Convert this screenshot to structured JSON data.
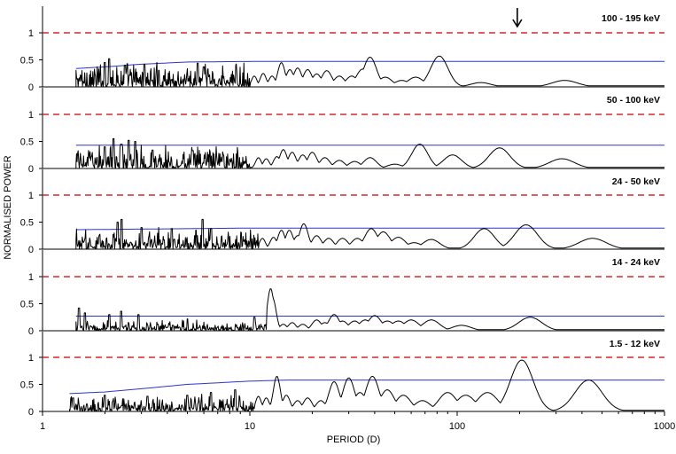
{
  "chart_data": {
    "type": "line",
    "xlabel": "PERIOD (D)",
    "ylabel": "NORMALISED POWER",
    "xscale": "log",
    "xlim": [
      1,
      1000
    ],
    "x_ticks": [
      "1",
      "10",
      "100",
      "1000"
    ],
    "y_ticks": [
      "0",
      "0.5",
      "1"
    ],
    "panel_ylim": [
      0,
      1.2
    ],
    "arrow_marker": {
      "panel": 0,
      "x": 195
    },
    "panels": [
      {
        "label": "100 - 195 keV",
        "colors": {
          "power": "#000000",
          "threshold_low": "#2b35c8",
          "threshold_high": "#d42a2a"
        },
        "threshold_high": 1.0,
        "threshold_low": [
          [
            1.45,
            0.34
          ],
          [
            2,
            0.37
          ],
          [
            3,
            0.42
          ],
          [
            5,
            0.46
          ],
          [
            10,
            0.47
          ],
          [
            1000,
            0.47
          ]
        ],
        "power": {
          "noise_range": [
            1.45,
            10
          ],
          "noise_max": 0.5,
          "spikes": [
            [
              2.0,
              0.45
            ],
            [
              2.1,
              0.52
            ],
            [
              2.5,
              0.4
            ],
            [
              3.1,
              0.42
            ],
            [
              5.6,
              0.44
            ],
            [
              6.0,
              0.37
            ]
          ],
          "peaks": [
            [
              10.5,
              0.2
            ],
            [
              11.6,
              0.25
            ],
            [
              12.8,
              0.2
            ],
            [
              14.2,
              0.45
            ],
            [
              15.6,
              0.32
            ],
            [
              17.0,
              0.35
            ],
            [
              19.0,
              0.32
            ],
            [
              21.0,
              0.24
            ],
            [
              23.5,
              0.3
            ],
            [
              27.0,
              0.2
            ],
            [
              31.0,
              0.2
            ],
            [
              35.0,
              0.33
            ],
            [
              38.0,
              0.55
            ],
            [
              45.0,
              0.18
            ],
            [
              54.0,
              0.12
            ],
            [
              63.0,
              0.18
            ],
            [
              82.0,
              0.57
            ],
            [
              130.0,
              0.08
            ],
            [
              330.0,
              0.12
            ]
          ],
          "floor": 0.02
        }
      },
      {
        "label": "50 - 100 keV",
        "colors": {
          "power": "#000000",
          "threshold_low": "#2b35c8",
          "threshold_high": "#d42a2a"
        },
        "threshold_high": 1.0,
        "threshold_low": [
          [
            1.45,
            0.43
          ],
          [
            1000,
            0.43
          ]
        ],
        "power": {
          "noise_range": [
            1.45,
            10
          ],
          "noise_max": 0.46,
          "spikes": [
            [
              2.0,
              0.4
            ],
            [
              2.2,
              0.55
            ],
            [
              2.4,
              0.45
            ],
            [
              2.6,
              0.52
            ],
            [
              2.8,
              0.5
            ],
            [
              3.4,
              0.34
            ],
            [
              5.3,
              0.33
            ]
          ],
          "peaks": [
            [
              11.0,
              0.2
            ],
            [
              12.0,
              0.18
            ],
            [
              13.5,
              0.22
            ],
            [
              14.5,
              0.35
            ],
            [
              16.0,
              0.3
            ],
            [
              18.0,
              0.25
            ],
            [
              20.0,
              0.3
            ],
            [
              23.0,
              0.2
            ],
            [
              27.0,
              0.15
            ],
            [
              32.0,
              0.13
            ],
            [
              38.0,
              0.2
            ],
            [
              50.0,
              0.08
            ],
            [
              66.0,
              0.45
            ],
            [
              95.0,
              0.25
            ],
            [
              160.0,
              0.38
            ],
            [
              320.0,
              0.18
            ]
          ],
          "floor": 0.02
        }
      },
      {
        "label": "24 - 50 keV",
        "colors": {
          "power": "#000000",
          "threshold_low": "#2b35c8",
          "threshold_high": "#d42a2a"
        },
        "threshold_high": 1.0,
        "threshold_low": [
          [
            1.45,
            0.36
          ],
          [
            10,
            0.39
          ],
          [
            1000,
            0.39
          ]
        ],
        "power": {
          "noise_range": [
            1.45,
            11
          ],
          "noise_max": 0.42,
          "spikes": [
            [
              2.3,
              0.5
            ],
            [
              2.4,
              0.55
            ],
            [
              3.0,
              0.4
            ],
            [
              4.2,
              0.38
            ],
            [
              5.5,
              0.35
            ],
            [
              5.9,
              0.55
            ],
            [
              6.5,
              0.38
            ]
          ],
          "peaks": [
            [
              11.5,
              0.2
            ],
            [
              13.0,
              0.22
            ],
            [
              14.2,
              0.35
            ],
            [
              15.5,
              0.35
            ],
            [
              17.0,
              0.25
            ],
            [
              18.2,
              0.47
            ],
            [
              21.0,
              0.25
            ],
            [
              24.0,
              0.2
            ],
            [
              28.0,
              0.2
            ],
            [
              33.0,
              0.2
            ],
            [
              38.5,
              0.38
            ],
            [
              44.0,
              0.32
            ],
            [
              52.0,
              0.22
            ],
            [
              62.0,
              0.12
            ],
            [
              75.0,
              0.18
            ],
            [
              135.0,
              0.38
            ],
            [
              215.0,
              0.45
            ],
            [
              450.0,
              0.2
            ]
          ],
          "floor": 0.02
        }
      },
      {
        "label": "14 - 24 keV",
        "colors": {
          "power": "#000000",
          "threshold_low": "#2b35c8",
          "threshold_high": "#d42a2a"
        },
        "threshold_high": 1.0,
        "threshold_low": [
          [
            1.45,
            0.27
          ],
          [
            1000,
            0.27
          ]
        ],
        "power": {
          "noise_range": [
            1.45,
            12
          ],
          "noise_max": 0.24,
          "spikes": [
            [
              1.5,
              0.42
            ],
            [
              1.6,
              0.33
            ],
            [
              2.1,
              0.3
            ],
            [
              2.4,
              0.36
            ],
            [
              2.9,
              0.3
            ],
            [
              5.0,
              0.22
            ],
            [
              10.5,
              0.25
            ]
          ],
          "peaks": [
            [
              12.6,
              0.78
            ],
            [
              12.9,
              0.6
            ],
            [
              14.5,
              0.12
            ],
            [
              16.0,
              0.15
            ],
            [
              18.0,
              0.12
            ],
            [
              21.0,
              0.2
            ],
            [
              23.0,
              0.15
            ],
            [
              25.5,
              0.3
            ],
            [
              28.0,
              0.18
            ],
            [
              32.0,
              0.18
            ],
            [
              36.0,
              0.2
            ],
            [
              40.0,
              0.28
            ],
            [
              46.0,
              0.18
            ],
            [
              52.0,
              0.18
            ],
            [
              60.0,
              0.2
            ],
            [
              75.0,
              0.2
            ],
            [
              105.0,
              0.1
            ],
            [
              225.0,
              0.25
            ]
          ],
          "floor": 0.02
        }
      },
      {
        "label": "1.5 - 12 keV",
        "colors": {
          "power": "#000000",
          "threshold_low": "#2b35c8",
          "threshold_high": "#d42a2a"
        },
        "threshold_high": 1.0,
        "threshold_low": [
          [
            1.35,
            0.33
          ],
          [
            2,
            0.36
          ],
          [
            3,
            0.42
          ],
          [
            5,
            0.5
          ],
          [
            10,
            0.56
          ],
          [
            15,
            0.58
          ],
          [
            1000,
            0.58
          ]
        ],
        "power": {
          "noise_range": [
            1.35,
            10.5
          ],
          "noise_max": 0.35,
          "spikes": [
            [
              1.4,
              0.25
            ],
            [
              2.0,
              0.3
            ],
            [
              3.2,
              0.28
            ],
            [
              5.0,
              0.3
            ],
            [
              6.5,
              0.35
            ],
            [
              8.5,
              0.4
            ]
          ],
          "peaks": [
            [
              11.0,
              0.28
            ],
            [
              12.0,
              0.25
            ],
            [
              13.5,
              0.65
            ],
            [
              15.0,
              0.3
            ],
            [
              17.0,
              0.2
            ],
            [
              19.0,
              0.25
            ],
            [
              22.0,
              0.2
            ],
            [
              25.5,
              0.55
            ],
            [
              30.0,
              0.62
            ],
            [
              34.0,
              0.35
            ],
            [
              39.0,
              0.65
            ],
            [
              46.0,
              0.4
            ],
            [
              55.0,
              0.3
            ],
            [
              68.0,
              0.2
            ],
            [
              90.0,
              0.35
            ],
            [
              110.0,
              0.3
            ],
            [
              140.0,
              0.35
            ],
            [
              205.0,
              0.95
            ],
            [
              430.0,
              0.58
            ]
          ],
          "floor": 0.02
        }
      }
    ]
  }
}
